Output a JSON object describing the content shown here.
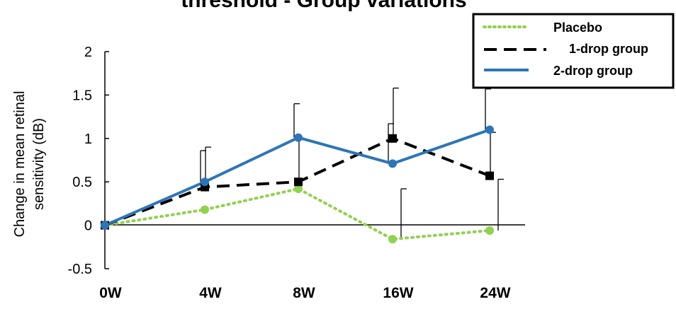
{
  "colors": {
    "placebo": "#92d050",
    "one_drop": "#000000",
    "two_drop": "#2e75b6",
    "title": "#1f8fd0",
    "axis": "#000000",
    "background": "#ffffff"
  },
  "chart_data": {
    "type": "line",
    "title": "threshold - Group variations",
    "ylabel": "Change in mean retinal sensitivity (dB)",
    "ylabel_lines": [
      "Change in mean retinal",
      "sensitivity (dB)"
    ],
    "xlabel": "",
    "categories": [
      "0W",
      "4W",
      "8W",
      "16W",
      "24W"
    ],
    "ylim": [
      -0.5,
      2
    ],
    "yticks": [
      -0.5,
      0,
      0.5,
      1,
      1.5,
      2
    ],
    "ytick_labels": [
      "-0.5",
      "0",
      "0.5",
      "1",
      "1.5",
      "2"
    ],
    "grid": false,
    "legend_position": "top-right",
    "series": [
      {
        "name": "Placebo",
        "color": "#92d050",
        "line_style": "dotted",
        "marker": "circle",
        "values": [
          0,
          0.18,
          0.42,
          -0.16,
          -0.06
        ],
        "error_upper": [
          null,
          null,
          null,
          0.42,
          0.53
        ]
      },
      {
        "name": "1-drop group",
        "color": "#000000",
        "line_style": "dashed",
        "marker": "square",
        "values": [
          0,
          0.44,
          0.5,
          1.0,
          0.57
        ],
        "error_upper": [
          null,
          0.9,
          1.0,
          1.58,
          1.07
        ]
      },
      {
        "name": "2-drop group",
        "color": "#2e75b6",
        "line_style": "solid",
        "marker": "circle",
        "values": [
          0,
          0.5,
          1.01,
          0.71,
          1.1
        ],
        "error_upper": [
          null,
          0.86,
          1.4,
          1.17,
          1.57
        ]
      }
    ]
  }
}
